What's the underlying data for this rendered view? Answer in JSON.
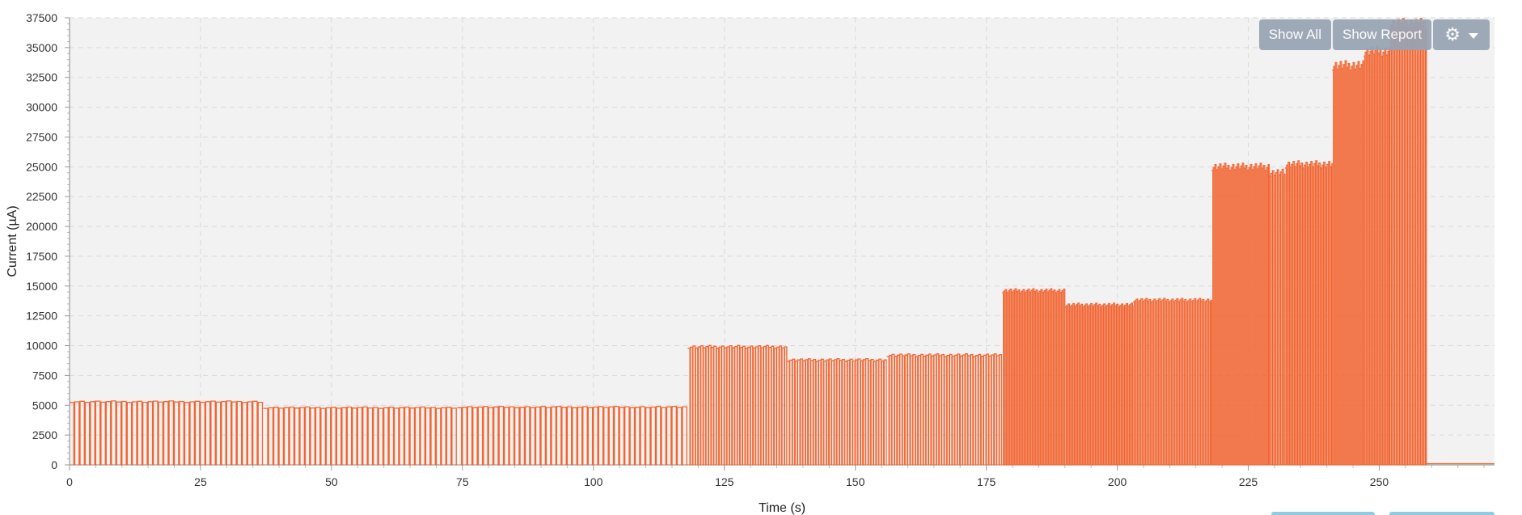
{
  "toolbar": {
    "show_all_label": "Show All",
    "show_report_label": "Show Report",
    "settings_icon": "gear-icon",
    "settings_caret_icon": "caret-down-icon"
  },
  "colors": {
    "series": "#f26430",
    "plot_background": "#f2f2f2",
    "grid": "#d9d9d9",
    "button": "#97a3b4"
  },
  "chart_data": {
    "type": "line",
    "xlabel": "Time (s)",
    "ylabel": "Current (µA)",
    "xlim": [
      0,
      272
    ],
    "ylim": [
      0,
      37500
    ],
    "x_ticks": [
      0,
      25,
      50,
      75,
      100,
      125,
      150,
      175,
      200,
      225,
      250
    ],
    "y_ticks": [
      0,
      2500,
      5000,
      7500,
      10000,
      12500,
      15000,
      17500,
      20000,
      22500,
      25000,
      27500,
      30000,
      32500,
      35000,
      37500
    ],
    "grid": true,
    "series": [
      {
        "segments": [
          {
            "x_start": 0,
            "x_end": 37,
            "peak": 5300,
            "base": 0,
            "pulse_period": 1.0
          },
          {
            "x_start": 37,
            "x_end": 74,
            "peak": 4800,
            "base": 0,
            "pulse_period": 1.0
          },
          {
            "x_start": 74,
            "x_end": 118,
            "peak": 4850,
            "base": 0,
            "pulse_period": 1.0
          },
          {
            "x_start": 118,
            "x_end": 137,
            "peak": 9900,
            "base": 0,
            "pulse_period": 0.5
          },
          {
            "x_start": 137,
            "x_end": 156,
            "peak": 8800,
            "base": 0,
            "pulse_period": 0.5
          },
          {
            "x_start": 156,
            "x_end": 178,
            "peak": 9200,
            "base": 0,
            "pulse_period": 0.5
          },
          {
            "x_start": 178,
            "x_end": 190,
            "peak": 14600,
            "base": 0,
            "pulse_period": 0.25
          },
          {
            "x_start": 190,
            "x_end": 203,
            "peak": 13400,
            "base": 0,
            "pulse_period": 0.25
          },
          {
            "x_start": 203,
            "x_end": 218,
            "peak": 13800,
            "base": 0,
            "pulse_period": 0.25
          },
          {
            "x_start": 218,
            "x_end": 229,
            "peak": 25000,
            "base": 0,
            "pulse_period": 0.125
          },
          {
            "x_start": 229,
            "x_end": 232,
            "peak": 24500,
            "base": 0,
            "pulse_period": 0.125
          },
          {
            "x_start": 232,
            "x_end": 241,
            "peak": 25200,
            "base": 0,
            "pulse_period": 0.125
          },
          {
            "x_start": 241,
            "x_end": 247,
            "peak": 33500,
            "base": 0,
            "pulse_period": 0.125
          },
          {
            "x_start": 247,
            "x_end": 252,
            "peak": 34700,
            "base": 0,
            "pulse_period": 0.125
          },
          {
            "x_start": 252,
            "x_end": 259,
            "peak": 37000,
            "base": 0,
            "pulse_period": 0.125
          },
          {
            "x_start": 259,
            "x_end": 272,
            "peak": 100,
            "base": 100,
            "pulse_period": 0
          }
        ]
      }
    ]
  }
}
